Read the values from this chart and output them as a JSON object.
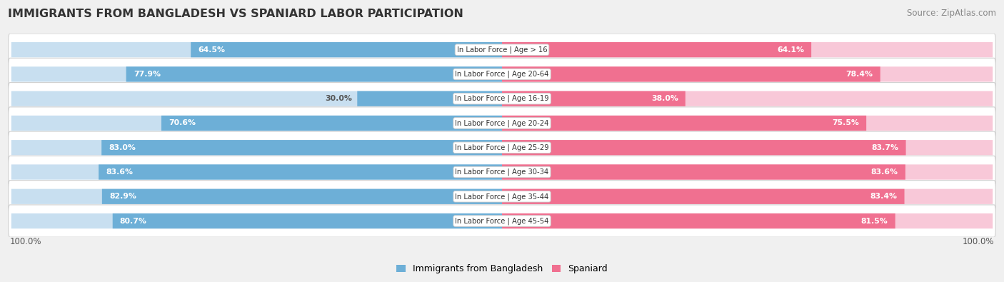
{
  "title": "IMMIGRANTS FROM BANGLADESH VS SPANIARD LABOR PARTICIPATION",
  "source": "Source: ZipAtlas.com",
  "categories": [
    "In Labor Force | Age > 16",
    "In Labor Force | Age 20-64",
    "In Labor Force | Age 16-19",
    "In Labor Force | Age 20-24",
    "In Labor Force | Age 25-29",
    "In Labor Force | Age 30-34",
    "In Labor Force | Age 35-44",
    "In Labor Force | Age 45-54"
  ],
  "bangladesh_values": [
    64.5,
    77.9,
    30.0,
    70.6,
    83.0,
    83.6,
    82.9,
    80.7
  ],
  "spaniard_values": [
    64.1,
    78.4,
    38.0,
    75.5,
    83.7,
    83.6,
    83.4,
    81.5
  ],
  "bangladesh_color": "#6dafd7",
  "spaniard_color": "#f07090",
  "bangladesh_color_light": "#c8dff0",
  "spaniard_color_light": "#f8c8d8",
  "label_bangladesh": "Immigrants from Bangladesh",
  "label_spaniard": "Spaniard",
  "bg_color": "#f0f0f0",
  "row_bg": "#ffffff",
  "max_value": 100.0,
  "xlim_left": -103,
  "xlim_right": 103
}
